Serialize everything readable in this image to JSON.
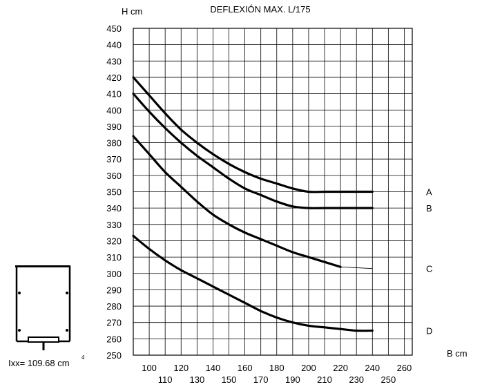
{
  "chart_data": {
    "type": "line",
    "title": "DEFLEXIÓN MAX. L/175",
    "xlabel": "B cm",
    "ylabel": "H cm",
    "xlim": [
      90,
      265
    ],
    "ylim": [
      250,
      450
    ],
    "grid": true,
    "x_ticks_upper": [
      100,
      120,
      140,
      160,
      180,
      200,
      220,
      240,
      260
    ],
    "x_ticks_lower": [
      110,
      130,
      150,
      170,
      190,
      210,
      230,
      250
    ],
    "y_ticks": [
      450,
      440,
      430,
      420,
      410,
      400,
      390,
      380,
      370,
      360,
      350,
      340,
      330,
      320,
      310,
      300,
      290,
      280,
      270,
      260,
      250
    ],
    "series": [
      {
        "name": "A",
        "x": [
          90,
          100,
          110,
          120,
          130,
          140,
          150,
          160,
          170,
          180,
          190,
          200,
          210,
          220,
          230,
          240
        ],
        "y": [
          420,
          409,
          398,
          388,
          380,
          373,
          367,
          362,
          358,
          355,
          352,
          350,
          350,
          350,
          350,
          350
        ]
      },
      {
        "name": "B",
        "x": [
          90,
          100,
          110,
          120,
          130,
          140,
          150,
          160,
          170,
          180,
          190,
          200,
          210,
          220,
          230,
          240
        ],
        "y": [
          410,
          399,
          389,
          380,
          372,
          365,
          358,
          352,
          348,
          344,
          341,
          340,
          340,
          340,
          340,
          340
        ]
      },
      {
        "name": "C",
        "x": [
          90,
          100,
          110,
          120,
          130,
          140,
          150,
          160,
          170,
          180,
          190,
          200,
          210,
          220
        ],
        "y": [
          384,
          373,
          362,
          353,
          344,
          336,
          330,
          325,
          321,
          317,
          313,
          310,
          307,
          304
        ],
        "thin_extension": {
          "x": [
            220,
            240
          ],
          "y": [
            304,
            303
          ]
        }
      },
      {
        "name": "D",
        "x": [
          90,
          100,
          110,
          120,
          130,
          140,
          150,
          160,
          170,
          180,
          190,
          200,
          210,
          220,
          230,
          240
        ],
        "y": [
          323,
          315,
          308,
          302,
          297,
          292,
          287,
          282,
          277,
          273,
          270,
          268,
          267,
          266,
          265,
          265
        ]
      }
    ]
  },
  "section_label": "Ixx= 109.68 cm",
  "section_label_sup": "4"
}
